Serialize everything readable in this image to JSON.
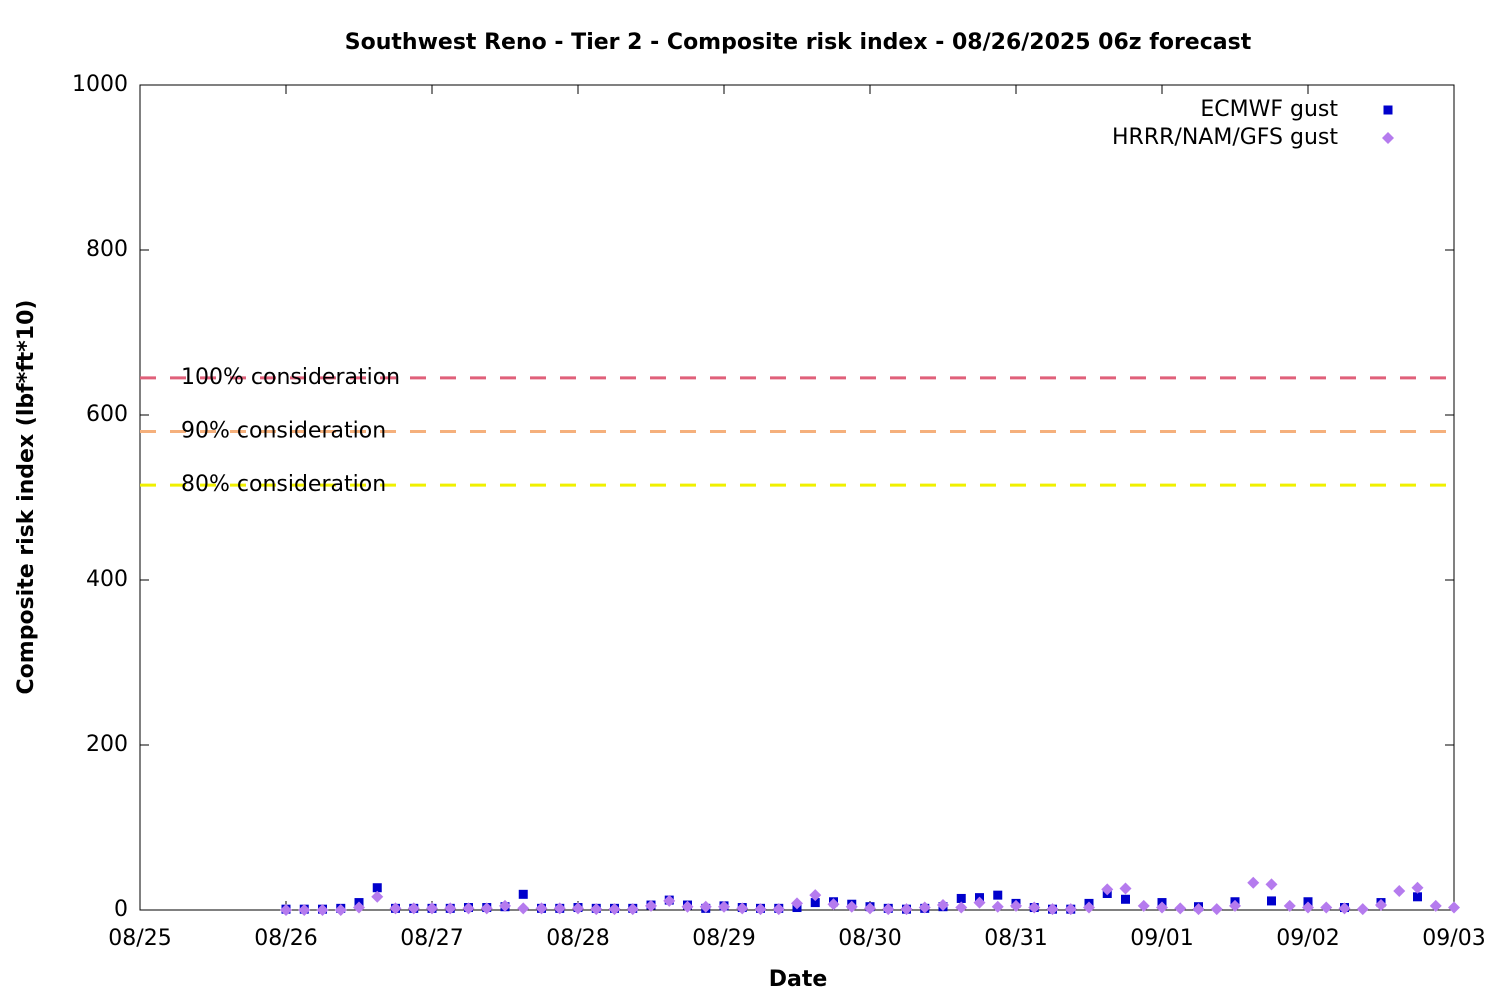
{
  "chart_data": {
    "type": "scatter",
    "title": "Southwest Reno - Tier 2 - Composite risk index - 08/26/2025 06z forecast",
    "x_label": "Date",
    "y_label": "Composite risk index (lbf*ft*10)",
    "xlim": [
      0,
      9
    ],
    "xticks": [
      {
        "value": 0,
        "label": "08/25"
      },
      {
        "value": 1,
        "label": "08/26"
      },
      {
        "value": 2,
        "label": "08/27"
      },
      {
        "value": 3,
        "label": "08/28"
      },
      {
        "value": 4,
        "label": "08/29"
      },
      {
        "value": 5,
        "label": "08/30"
      },
      {
        "value": 6,
        "label": "08/31"
      },
      {
        "value": 7,
        "label": "09/01"
      },
      {
        "value": 8,
        "label": "09/02"
      },
      {
        "value": 9,
        "label": "09/03"
      }
    ],
    "ylim": [
      0,
      1000
    ],
    "yticks": [
      0,
      200,
      400,
      600,
      800,
      1000
    ],
    "grid": false,
    "legend": "top-right",
    "x": [
      1,
      1.125,
      1.25,
      1.375,
      1.5,
      1.625,
      1.75,
      1.875,
      2,
      2.125,
      2.25,
      2.375,
      2.5,
      2.625,
      2.75,
      2.875,
      3,
      3.125,
      3.25,
      3.375,
      3.5,
      3.625,
      3.75,
      3.875,
      4,
      4.125,
      4.25,
      4.375,
      4.5,
      4.625,
      4.75,
      4.875,
      5,
      5.125,
      5.25,
      5.375,
      5.5,
      5.625,
      5.75,
      5.875,
      6,
      6.125,
      6.25,
      6.375,
      6.5,
      6.625,
      6.75,
      6.875,
      7,
      7.125,
      7.25,
      7.375,
      7.5,
      7.625,
      7.75,
      7.875,
      8,
      8.125,
      8.25,
      8.375,
      8.5,
      8.625,
      8.75,
      8.875,
      9
    ],
    "series": [
      {
        "name": "ECMWF gust",
        "color": "#0000cc",
        "marker": "square",
        "values": [
          1,
          1,
          1,
          2,
          9,
          27,
          2,
          2,
          2,
          2,
          3,
          3,
          4,
          19,
          2,
          2,
          3,
          2,
          2,
          2,
          6,
          12,
          6,
          2,
          5,
          3,
          2,
          2,
          3,
          9,
          10,
          7,
          4,
          2,
          1,
          2,
          4,
          14,
          15,
          18,
          8,
          3,
          1,
          1,
          8,
          20,
          13,
          null,
          9,
          null,
          4,
          null,
          10,
          null,
          11,
          null,
          10,
          null,
          3,
          null,
          9,
          null,
          16,
          null,
          null
        ]
      },
      {
        "name": "HRRR/NAM/GFS gust",
        "color": "#b57bee",
        "marker": "diamond",
        "values": [
          0,
          0,
          0,
          0,
          3,
          16,
          2,
          2,
          2,
          2,
          2,
          2,
          5,
          2,
          2,
          2,
          2,
          1,
          1,
          1,
          5,
          11,
          4,
          4,
          4,
          2,
          1,
          1,
          8,
          18,
          7,
          4,
          2,
          1,
          1,
          3,
          6,
          3,
          9,
          4,
          5,
          3,
          1,
          1,
          3,
          25,
          26,
          5,
          3,
          2,
          1,
          1,
          5,
          33,
          31,
          5,
          3,
          3,
          2,
          1,
          6,
          23,
          27,
          5,
          3
        ]
      }
    ],
    "reference_lines": [
      {
        "label": "100% consideration",
        "value": 645,
        "color": "#e0607a"
      },
      {
        "label": "90% consideration",
        "value": 580,
        "color": "#f5b07c"
      },
      {
        "label": "80% consideration",
        "value": 515,
        "color": "#f0f000"
      }
    ]
  }
}
